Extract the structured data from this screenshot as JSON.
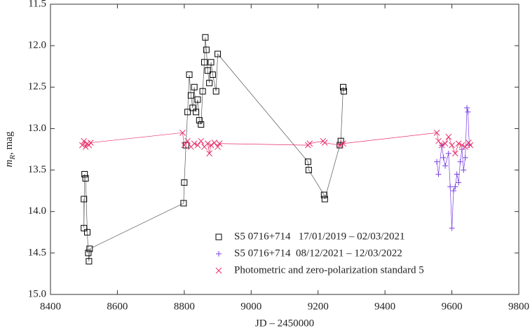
{
  "chart_data": {
    "type": "scatter",
    "xlabel": "JD – 2450000",
    "ylabel": {
      "main": "m",
      "sub": "R",
      "rest": ", mag"
    },
    "xlim": [
      8400,
      9800
    ],
    "xticks": [
      8400,
      8600,
      8800,
      9000,
      9200,
      9400,
      9600,
      9800
    ],
    "ylim": [
      11.5,
      15
    ],
    "y_inverted": true,
    "yticks": [
      11.5,
      {
        "value": 12,
        "label": "12.0"
      },
      12.5,
      {
        "value": 13,
        "label": "13.0"
      },
      13.5,
      {
        "value": 14,
        "label": "14.0"
      },
      14.5,
      {
        "value": 15,
        "label": "15.0"
      }
    ],
    "series": [
      {
        "name": "S5 0716+714   17/01/2019 – 02/03/2021",
        "color": "#000000",
        "marker": "square",
        "line_color": "#555555",
        "x": [
          8500,
          8500,
          8502,
          8505,
          8510,
          8513,
          8515,
          8517,
          8798,
          8800,
          8805,
          8810,
          8815,
          8820,
          8825,
          8830,
          8835,
          8840,
          8845,
          8850,
          8855,
          8860,
          8863,
          8866,
          8870,
          8875,
          8880,
          8885,
          8895,
          8900,
          9170,
          9172,
          9218,
          9220,
          9265,
          9268,
          9275,
          9277
        ],
        "values": [
          13.85,
          14.2,
          13.55,
          13.6,
          14.25,
          14.5,
          14.6,
          14.45,
          13.9,
          13.65,
          13.2,
          12.8,
          12.35,
          12.6,
          12.75,
          12.5,
          12.8,
          12.65,
          12.9,
          12.95,
          12.55,
          12.2,
          11.9,
          12.05,
          12.3,
          12.45,
          12.2,
          12.35,
          12.55,
          12.1,
          13.4,
          13.5,
          13.8,
          13.85,
          13.2,
          13.15,
          12.5,
          12.55
        ]
      },
      {
        "name": "S5 0716+714  08/12/2021 – 12/03/2022",
        "color": "#7b3fe4",
        "marker": "plus",
        "line_color": "#7b3fe4",
        "x": [
          9555,
          9560,
          9570,
          9575,
          9580,
          9590,
          9595,
          9600,
          9605,
          9610,
          9615,
          9620,
          9625,
          9630,
          9635,
          9640,
          9645,
          9648,
          9652
        ],
        "values": [
          13.4,
          13.55,
          13.2,
          13.35,
          13.45,
          13.3,
          13.7,
          14.2,
          13.75,
          13.7,
          13.55,
          13.65,
          13.4,
          13.25,
          13.5,
          13.35,
          12.75,
          12.8,
          13.2
        ]
      },
      {
        "name": "Photometric and zero-polarization standard 5",
        "color": "#e8306a",
        "marker": "cross",
        "line_color": "#e8306a",
        "x": [
          8495,
          8500,
          8505,
          8510,
          8515,
          8520,
          8795,
          8800,
          8810,
          8820,
          8830,
          8840,
          8850,
          8860,
          8870,
          8875,
          8880,
          8890,
          8900,
          8905,
          9170,
          9175,
          9215,
          9220,
          9265,
          9275,
          9555,
          9560,
          9570,
          9580,
          9590,
          9600,
          9610,
          9620,
          9630,
          9640,
          9650,
          9655
        ],
        "values": [
          13.2,
          13.15,
          13.22,
          13.18,
          13.2,
          13.17,
          13.05,
          13.2,
          13.15,
          13.22,
          13.18,
          13.2,
          13.15,
          13.22,
          13.18,
          13.3,
          13.2,
          13.17,
          13.22,
          13.18,
          13.2,
          13.18,
          13.15,
          13.17,
          13.2,
          13.18,
          13.05,
          13.15,
          13.2,
          13.18,
          13.1,
          13.2,
          13.3,
          13.18,
          13.2,
          13.22,
          13.17,
          13.2
        ]
      }
    ],
    "legend": "lower center"
  }
}
